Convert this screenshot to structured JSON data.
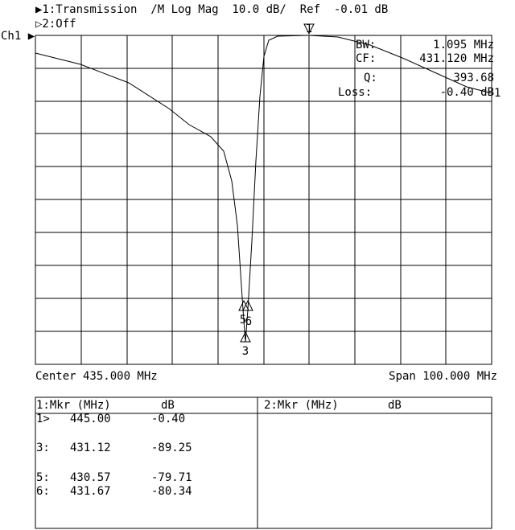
{
  "header": {
    "line1": "▶1:Transmission  /M Log Mag  10.0 dB/  Ref  -0.01 dB",
    "line2": "▷2:Off",
    "channel": "Ch1 ▶"
  },
  "readout": [
    [
      "BW:",
      "1.095 MHz"
    ],
    [
      "CF:",
      "431.120 MHz"
    ],
    [
      "Q:",
      "393.68"
    ],
    [
      "Loss:",
      "-0.40 dB"
    ]
  ],
  "trace_label": "1",
  "markers": [
    "1",
    "3",
    "5",
    "6"
  ],
  "footer": {
    "center": "Center 435.000 MHz",
    "span": "Span 100.000 MHz"
  },
  "tables": [
    {
      "header": [
        "1:Mkr (MHz)",
        "dB"
      ],
      "rows": [
        [
          "1>",
          "445.00",
          "-0.40"
        ],
        [
          "3:",
          "431.12",
          "-89.25"
        ],
        [
          "5:",
          "430.57",
          "-79.71"
        ],
        [
          "6:",
          "431.67",
          "-80.34"
        ]
      ]
    },
    {
      "header": [
        "2:Mkr (MHz)",
        "dB"
      ],
      "rows": []
    }
  ]
}
